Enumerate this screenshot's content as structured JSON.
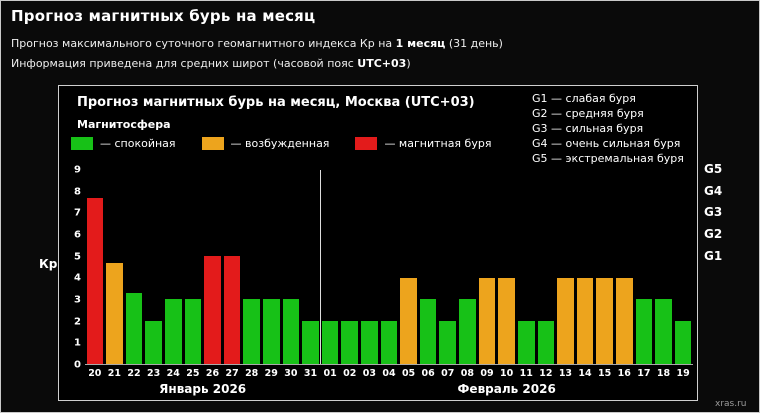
{
  "page": {
    "title": "Прогноз магнитных бурь на месяц",
    "subtitle1": {
      "prefix": "Прогноз максимального суточного геомагнитного индекса Кр на ",
      "bold": "1 месяц",
      "suffix": " (31 день)"
    },
    "subtitle2": {
      "prefix": "Информация приведена для средних широт (часовой пояс ",
      "bold": "UTC+03",
      "suffix": ")"
    },
    "watermark": "xras.ru"
  },
  "chart": {
    "title": "Прогноз магнитных бурь на месяц, Москва (UTC+03)",
    "magnetosphere_label": "Магнитосфера",
    "colors": {
      "green": "#17c117",
      "orange": "#eda41d",
      "red": "#e31b1b"
    },
    "legend": [
      {
        "key": "green",
        "color": "#17c117",
        "label": "— спокойная"
      },
      {
        "key": "orange",
        "color": "#eda41d",
        "label": "— возбужденная"
      },
      {
        "key": "red",
        "color": "#e31b1b",
        "label": "— магнитная буря"
      }
    ],
    "g_legend": [
      "G1 — слабая буря",
      "G2 — средняя буря",
      "G3 — сильная буря",
      "G4 — очень сильная буря",
      "G5 — экстремальная буря"
    ]
  },
  "chart_data": {
    "type": "bar",
    "title": "Прогноз магнитных бурь на месяц, Москва (UTC+03)",
    "ylabel": "Кр",
    "ylim": [
      0,
      9
    ],
    "yticks": [
      0,
      1,
      2,
      3,
      4,
      5,
      6,
      7,
      8,
      9
    ],
    "grid": false,
    "right_axis": [
      {
        "label": "G1",
        "value": 5
      },
      {
        "label": "G2",
        "value": 6
      },
      {
        "label": "G3",
        "value": 7
      },
      {
        "label": "G4",
        "value": 8
      },
      {
        "label": "G5",
        "value": 9
      }
    ],
    "categories": [
      "20",
      "21",
      "22",
      "23",
      "24",
      "25",
      "26",
      "27",
      "28",
      "29",
      "30",
      "31",
      "01",
      "02",
      "03",
      "04",
      "05",
      "06",
      "07",
      "08",
      "09",
      "10",
      "11",
      "12",
      "13",
      "14",
      "15",
      "16",
      "17",
      "18",
      "19"
    ],
    "values": [
      7.7,
      4.7,
      3.3,
      2,
      3,
      3,
      5,
      5,
      3,
      3,
      3,
      2,
      2,
      2,
      2,
      2,
      4,
      3,
      2,
      3,
      4,
      4,
      2,
      2,
      4,
      4,
      4,
      4,
      3,
      3,
      2
    ],
    "colors": [
      "red",
      "orange",
      "green",
      "green",
      "green",
      "green",
      "red",
      "red",
      "green",
      "green",
      "green",
      "green",
      "green",
      "green",
      "green",
      "green",
      "orange",
      "green",
      "green",
      "green",
      "orange",
      "orange",
      "green",
      "green",
      "orange",
      "orange",
      "orange",
      "orange",
      "green",
      "green",
      "green"
    ],
    "months": [
      {
        "label": "Январь 2026",
        "days": 12
      },
      {
        "label": "Февраль 2026",
        "days": 19
      }
    ],
    "month_separator_index": 12
  }
}
